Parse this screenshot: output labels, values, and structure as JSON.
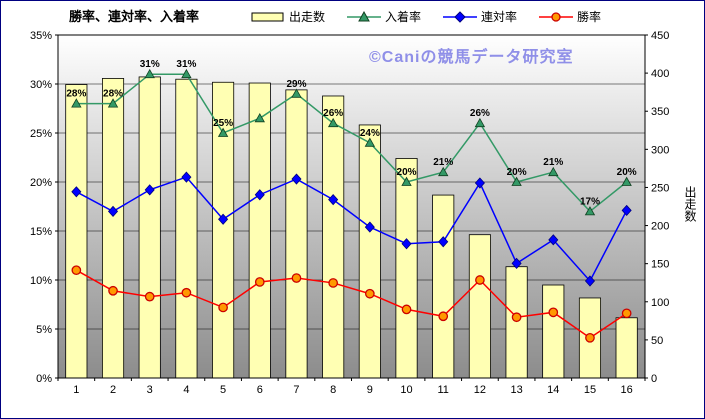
{
  "watermark": "©Caniの競馬データ研究室",
  "legend": [
    {
      "label": "出走数"
    },
    {
      "label": "入着率"
    },
    {
      "label": "連対率"
    },
    {
      "label": "勝率"
    }
  ],
  "chart_data": {
    "type": "combo",
    "title": "勝率、連対率、入着率",
    "categories": [
      "1",
      "2",
      "3",
      "4",
      "5",
      "6",
      "7",
      "8",
      "9",
      "10",
      "11",
      "12",
      "13",
      "14",
      "15",
      "16"
    ],
    "plot_bg_top": "#FFFFFF",
    "plot_bg_bottom": "#8C8C8C",
    "grid_color": "#000000",
    "series": [
      {
        "name": "出走数",
        "type": "bar",
        "axis": "right",
        "color": "#FFFFB3",
        "stroke": "#000000",
        "values": [
          385,
          393,
          395,
          392,
          388,
          387,
          378,
          370,
          332,
          288,
          240,
          188,
          146,
          122,
          105,
          79
        ]
      },
      {
        "name": "入着率",
        "type": "line",
        "axis": "left",
        "marker": "triangle",
        "color": "#339966",
        "marker_fill": "#339966",
        "marker_stroke": "#104020",
        "values": [
          28,
          28,
          31,
          31,
          25,
          26.5,
          29,
          26,
          24,
          20,
          21,
          26,
          20,
          21,
          17,
          20
        ],
        "labels": [
          "28%",
          "28%",
          "31%",
          "31%",
          "25%",
          "",
          "29%",
          "26%",
          "24%",
          "20%",
          "21%",
          "26%",
          "20%",
          "21%",
          "17%",
          "20%"
        ]
      },
      {
        "name": "連対率",
        "type": "line",
        "axis": "left",
        "marker": "diamond",
        "color": "#0000FF",
        "marker_fill": "#0000FF",
        "marker_stroke": "#000080",
        "values": [
          19,
          17,
          19.2,
          20.5,
          16.2,
          18.7,
          20.3,
          18.2,
          15.4,
          13.7,
          13.9,
          19.9,
          11.7,
          14.1,
          9.9,
          17.1
        ]
      },
      {
        "name": "勝率",
        "type": "line",
        "axis": "left",
        "marker": "circle",
        "color": "#FF0000",
        "marker_fill": "#FF9900",
        "marker_stroke": "#CC0000",
        "values": [
          11,
          8.9,
          8.3,
          8.7,
          7.2,
          9.8,
          10.2,
          9.7,
          8.6,
          7,
          6.3,
          10,
          6.2,
          6.7,
          4.1,
          6.6
        ]
      }
    ],
    "left_axis": {
      "min": 0,
      "max": 35,
      "step": 5,
      "ticks": [
        "0%",
        "5%",
        "10%",
        "15%",
        "20%",
        "25%",
        "30%",
        "35%"
      ]
    },
    "right_axis": {
      "min": 0,
      "max": 450,
      "step": 50,
      "title": "出走数",
      "ticks": [
        "0",
        "50",
        "100",
        "150",
        "200",
        "250",
        "300",
        "350",
        "400",
        "450"
      ]
    }
  }
}
